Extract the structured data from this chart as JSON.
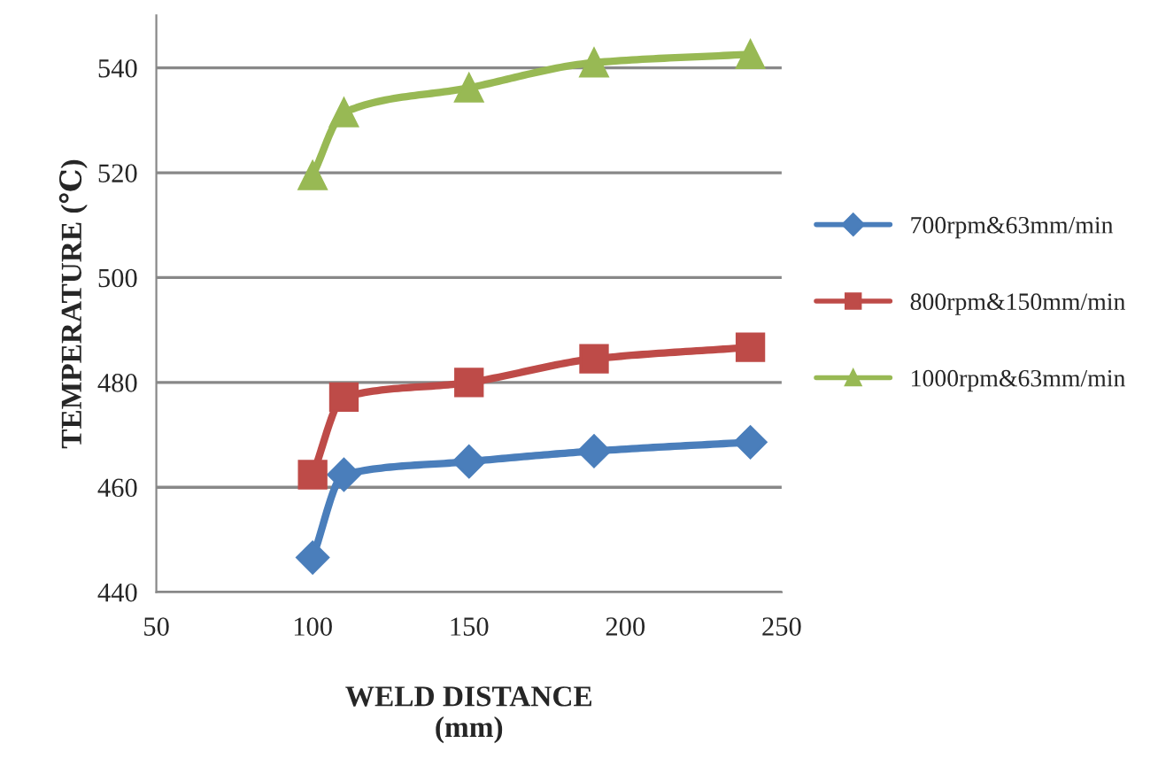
{
  "chart_data": {
    "type": "line",
    "xlabel": "WELD DISTANCE\n(mm)",
    "ylabel": "TEMPERATURE (℃)",
    "x": [
      100,
      110,
      150,
      190,
      240
    ],
    "series": [
      {
        "name": "700rpm&63mm/min",
        "color": "#4a7ebb",
        "marker": "diamond",
        "values": [
          446.6,
          462.4,
          464.9,
          466.9,
          468.6
        ]
      },
      {
        "name": "800rpm&150mm/min",
        "color": "#be4b48",
        "marker": "square",
        "values": [
          462.4,
          477.2,
          480,
          484.5,
          486.7
        ]
      },
      {
        "name": "1000rpm&63mm/min",
        "color": "#98b954",
        "marker": "triangle",
        "values": [
          519.5,
          531.5,
          536.2,
          541,
          542.6
        ]
      }
    ],
    "xlim": [
      50,
      250
    ],
    "xticks": [
      50,
      100,
      150,
      200,
      250
    ],
    "ylim": [
      440,
      550
    ],
    "yticks": [
      440,
      460,
      480,
      500,
      520,
      540
    ],
    "grid": "y",
    "legend": "right",
    "line_style": "solid"
  }
}
